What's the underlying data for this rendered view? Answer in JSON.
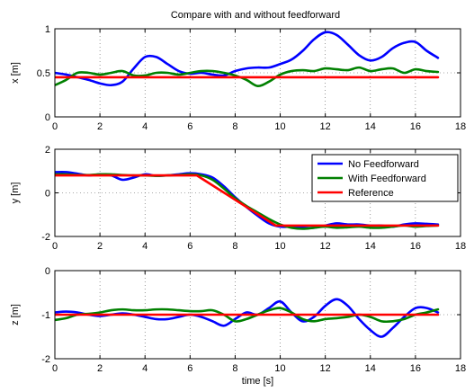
{
  "figure_title": "Compare with and without feedforward",
  "chart_data": [
    {
      "type": "line",
      "title": "Compare with and without feedforward",
      "xlabel": "",
      "ylabel": "x [m]",
      "xlim": [
        0,
        18
      ],
      "ylim": [
        0,
        1
      ],
      "xticks": [
        "0",
        "2",
        "4",
        "6",
        "8",
        "10",
        "12",
        "14",
        "16",
        "18"
      ],
      "yticks": [
        "0",
        "0.5",
        "1"
      ],
      "grid": true,
      "series": [
        {
          "color": "#0000ff",
          "x": [
            0,
            0.5,
            1,
            1.5,
            2,
            2.5,
            3,
            3.5,
            4,
            4.5,
            5,
            5.5,
            6,
            6.5,
            7,
            7.5,
            8,
            8.5,
            9,
            9.5,
            10,
            10.5,
            11,
            11.5,
            12,
            12.5,
            13,
            13.5,
            14,
            14.5,
            15,
            15.5,
            16,
            16.5,
            17
          ],
          "y": [
            0.5,
            0.48,
            0.45,
            0.42,
            0.38,
            0.36,
            0.4,
            0.55,
            0.68,
            0.68,
            0.6,
            0.52,
            0.49,
            0.5,
            0.48,
            0.47,
            0.52,
            0.55,
            0.56,
            0.56,
            0.6,
            0.65,
            0.75,
            0.88,
            0.96,
            0.93,
            0.82,
            0.7,
            0.64,
            0.68,
            0.78,
            0.84,
            0.85,
            0.75,
            0.67
          ]
        },
        {
          "color": "#008000",
          "x": [
            0,
            0.5,
            1,
            1.5,
            2,
            2.5,
            3,
            3.5,
            4,
            4.5,
            5,
            5.5,
            6,
            6.5,
            7,
            7.5,
            8,
            8.5,
            9,
            9.5,
            10,
            10.5,
            11,
            11.5,
            12,
            12.5,
            13,
            13.5,
            14,
            14.5,
            15,
            15.5,
            16,
            16.5,
            17
          ],
          "y": [
            0.36,
            0.42,
            0.5,
            0.5,
            0.48,
            0.5,
            0.52,
            0.47,
            0.47,
            0.5,
            0.5,
            0.48,
            0.5,
            0.52,
            0.52,
            0.5,
            0.47,
            0.42,
            0.35,
            0.4,
            0.48,
            0.52,
            0.53,
            0.52,
            0.55,
            0.54,
            0.53,
            0.56,
            0.52,
            0.54,
            0.55,
            0.5,
            0.54,
            0.52,
            0.51
          ]
        },
        {
          "color": "#ff0000",
          "x": [
            0,
            17
          ],
          "y": [
            0.45,
            0.45
          ]
        }
      ]
    },
    {
      "type": "line",
      "xlabel": "",
      "ylabel": "y [m]",
      "xlim": [
        0,
        18
      ],
      "ylim": [
        -2,
        2
      ],
      "xticks": [
        "0",
        "2",
        "4",
        "6",
        "8",
        "10",
        "12",
        "14",
        "16",
        "18"
      ],
      "yticks": [
        "-2",
        "0",
        "2"
      ],
      "grid": true,
      "legend": {
        "position": "top-right",
        "entries": [
          {
            "name": "No Feedforward",
            "color": "#0000ff"
          },
          {
            "name": "With Feedforward",
            "color": "#008000"
          },
          {
            "name": "Reference",
            "color": "#ff0000"
          }
        ]
      },
      "series": [
        {
          "name": "No Feedforward",
          "color": "#0000ff",
          "x": [
            0,
            0.5,
            1,
            1.5,
            2,
            2.5,
            3,
            3.5,
            4,
            4.5,
            5,
            5.5,
            6,
            6.5,
            7,
            7.5,
            8,
            8.5,
            9,
            9.5,
            10,
            10.5,
            11,
            11.5,
            12,
            12.5,
            13,
            13.5,
            14,
            14.5,
            15,
            15.5,
            16,
            16.5,
            17
          ],
          "y": [
            0.95,
            0.95,
            0.88,
            0.8,
            0.85,
            0.8,
            0.6,
            0.7,
            0.85,
            0.78,
            0.8,
            0.85,
            0.9,
            0.85,
            0.7,
            0.3,
            -0.2,
            -0.65,
            -1.05,
            -1.4,
            -1.55,
            -1.55,
            -1.6,
            -1.6,
            -1.5,
            -1.4,
            -1.45,
            -1.45,
            -1.5,
            -1.5,
            -1.55,
            -1.45,
            -1.4,
            -1.42,
            -1.45
          ]
        },
        {
          "name": "With Feedforward",
          "color": "#008000",
          "x": [
            0,
            0.5,
            1,
            1.5,
            2,
            2.5,
            3,
            3.5,
            4,
            4.5,
            5,
            5.5,
            6,
            6.5,
            7,
            7.5,
            8,
            8.5,
            9,
            9.5,
            10,
            10.5,
            11,
            11.5,
            12,
            12.5,
            13,
            13.5,
            14,
            14.5,
            15,
            15.5,
            16,
            16.5,
            17
          ],
          "y": [
            0.85,
            0.85,
            0.82,
            0.82,
            0.85,
            0.85,
            0.82,
            0.8,
            0.8,
            0.78,
            0.8,
            0.82,
            0.85,
            0.8,
            0.6,
            0.2,
            -0.25,
            -0.6,
            -0.9,
            -1.2,
            -1.45,
            -1.6,
            -1.65,
            -1.6,
            -1.55,
            -1.6,
            -1.58,
            -1.55,
            -1.6,
            -1.6,
            -1.55,
            -1.5,
            -1.55,
            -1.52,
            -1.5
          ]
        },
        {
          "name": "Reference",
          "color": "#ff0000",
          "x": [
            0,
            6.3,
            9.8,
            17
          ],
          "y": [
            0.8,
            0.8,
            -1.5,
            -1.5
          ]
        }
      ]
    },
    {
      "type": "line",
      "xlabel": "time [s]",
      "ylabel": "z [m]",
      "xlim": [
        0,
        18
      ],
      "ylim": [
        -2,
        0
      ],
      "xticks": [
        "0",
        "2",
        "4",
        "6",
        "8",
        "10",
        "12",
        "14",
        "16",
        "18"
      ],
      "yticks": [
        "-2",
        "-1",
        "0"
      ],
      "grid": true,
      "series": [
        {
          "color": "#0000ff",
          "x": [
            0,
            0.5,
            1,
            1.5,
            2,
            2.5,
            3,
            3.5,
            4,
            4.5,
            5,
            5.5,
            6,
            6.5,
            7,
            7.5,
            8,
            8.5,
            9,
            9.5,
            10,
            10.5,
            11,
            11.5,
            12,
            12.5,
            13,
            13.5,
            14,
            14.5,
            15,
            15.5,
            16,
            16.5,
            17
          ],
          "y": [
            -0.95,
            -0.93,
            -0.95,
            -1.0,
            -1.03,
            -1.0,
            -0.97,
            -1.0,
            -1.05,
            -1.1,
            -1.1,
            -1.05,
            -1.0,
            -1.05,
            -1.15,
            -1.25,
            -1.1,
            -0.95,
            -1.0,
            -0.85,
            -0.7,
            -0.95,
            -1.15,
            -1.05,
            -0.8,
            -0.65,
            -0.8,
            -1.1,
            -1.35,
            -1.5,
            -1.3,
            -1.05,
            -0.85,
            -0.85,
            -0.95
          ]
        },
        {
          "color": "#008000",
          "x": [
            0,
            0.5,
            1,
            1.5,
            2,
            2.5,
            3,
            3.5,
            4,
            4.5,
            5,
            5.5,
            6,
            6.5,
            7,
            7.5,
            8,
            8.5,
            9,
            9.5,
            10,
            10.5,
            11,
            11.5,
            12,
            12.5,
            13,
            13.5,
            14,
            14.5,
            15,
            15.5,
            16,
            16.5,
            17
          ],
          "y": [
            -1.12,
            -1.08,
            -1.0,
            -0.98,
            -0.95,
            -0.9,
            -0.88,
            -0.9,
            -0.9,
            -0.88,
            -0.88,
            -0.9,
            -0.92,
            -0.92,
            -0.9,
            -1.0,
            -1.15,
            -1.1,
            -1.0,
            -0.9,
            -0.85,
            -0.95,
            -1.1,
            -1.15,
            -1.1,
            -1.08,
            -1.05,
            -1.0,
            -1.05,
            -1.15,
            -1.15,
            -1.1,
            -1.0,
            -0.95,
            -0.88
          ]
        },
        {
          "color": "#ff0000",
          "x": [
            0,
            17
          ],
          "y": [
            -1.0,
            -1.0
          ]
        }
      ]
    }
  ]
}
